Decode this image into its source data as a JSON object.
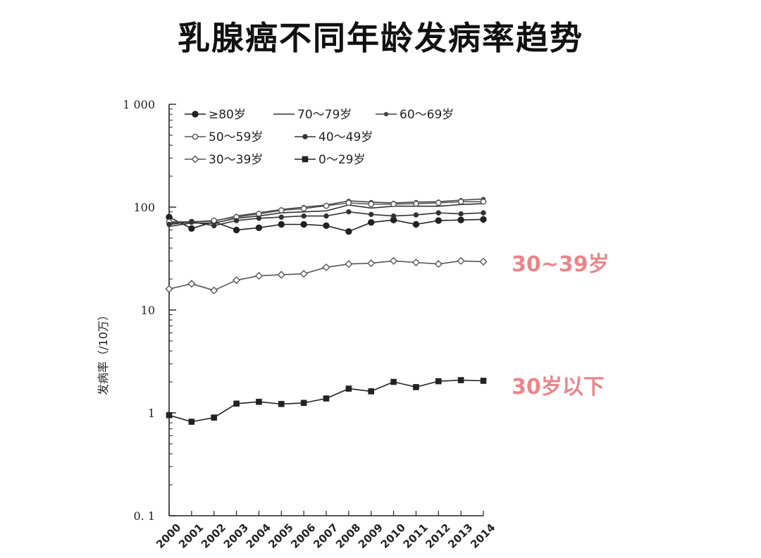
{
  "title": "乳腺癌不同年龄发病率趋势",
  "annotations": {
    "age_30_39": "30~39岁",
    "under_30": "30岁以下"
  },
  "chart_data": {
    "type": "line",
    "title": "乳腺癌不同年龄发病率趋势",
    "xlabel": "",
    "ylabel": "发病率（/10万）",
    "yscale": "log",
    "ylim": [
      0.1,
      1000
    ],
    "yticks": [
      {
        "value": 1000,
        "label": "1 000"
      },
      {
        "value": 100,
        "label": "100"
      },
      {
        "value": 10,
        "label": "10"
      },
      {
        "value": 1,
        "label": "1"
      },
      {
        "value": 0.1,
        "label": "0. 1"
      }
    ],
    "x": [
      "2000",
      "2001",
      "2002",
      "2003",
      "2004",
      "2005",
      "2006",
      "2007",
      "2008",
      "2009",
      "2010",
      "2011",
      "2012",
      "2013",
      "2014"
    ],
    "legend_position": "top-left",
    "grid": false,
    "series": [
      {
        "name": "≥80岁",
        "marker": "filled-circle",
        "values": [
          80,
          62,
          72,
          60,
          63,
          68,
          68,
          66,
          58,
          71,
          75,
          68,
          74,
          75,
          76
        ]
      },
      {
        "name": "70～79岁",
        "marker": "none",
        "values": [
          65,
          70,
          70,
          78,
          82,
          88,
          90,
          92,
          105,
          98,
          102,
          102,
          102,
          106,
          108
        ]
      },
      {
        "name": "60～69岁",
        "marker": "small-dot",
        "values": [
          70,
          72,
          73,
          82,
          88,
          95,
          100,
          105,
          115,
          112,
          110,
          112,
          113,
          117,
          120
        ]
      },
      {
        "name": "50～59岁",
        "marker": "open-circle",
        "values": [
          72,
          72,
          74,
          80,
          86,
          93,
          97,
          103,
          110,
          107,
          107,
          108,
          110,
          113,
          113
        ]
      },
      {
        "name": "40～49岁",
        "marker": "filled-dot",
        "values": [
          68,
          72,
          66,
          74,
          78,
          80,
          82,
          82,
          90,
          85,
          82,
          84,
          88,
          86,
          88
        ]
      },
      {
        "name": "30～39岁",
        "marker": "open-diamond",
        "values": [
          16,
          18,
          15.5,
          19.5,
          21.5,
          22,
          22.5,
          26,
          28,
          28.5,
          30,
          29,
          28,
          30,
          29.5
        ]
      },
      {
        "name": "0～29岁",
        "marker": "filled-square",
        "values": [
          0.95,
          0.82,
          0.9,
          1.23,
          1.28,
          1.22,
          1.25,
          1.38,
          1.72,
          1.62,
          2.0,
          1.78,
          2.03,
          2.08,
          2.05
        ]
      }
    ]
  }
}
